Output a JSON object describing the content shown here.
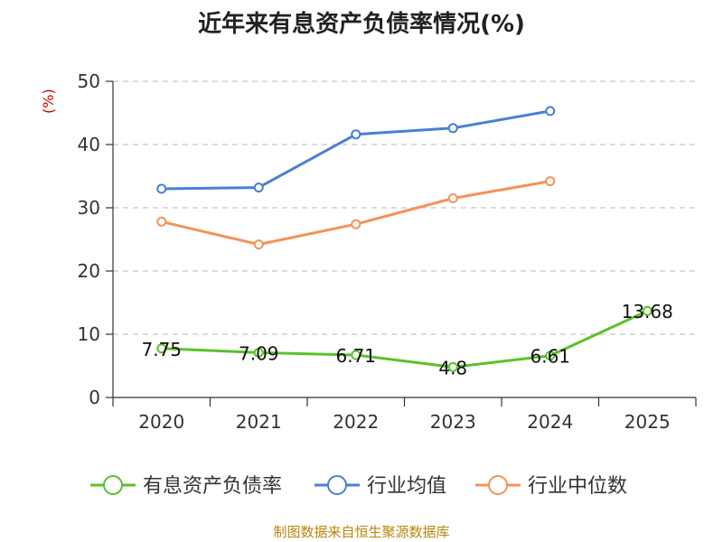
{
  "chart_data": {
    "type": "line",
    "title": "近年来有息资产负债率情况(%)",
    "ylabel": "(%)",
    "xlabel": "",
    "categories": [
      "2020",
      "2021",
      "2022",
      "2023",
      "2024",
      "2025"
    ],
    "ylim": [
      0,
      50
    ],
    "yticks": [
      0,
      10,
      20,
      30,
      40,
      50
    ],
    "grid": true,
    "legend_position": "bottom",
    "series": [
      {
        "name": "有息资产负债率",
        "color": "#5cc22a",
        "values": [
          7.75,
          7.09,
          6.71,
          4.8,
          6.61,
          13.68
        ],
        "labels": [
          "7.75",
          "7.09",
          "6.71",
          "4.8",
          "6.61",
          "13.68"
        ]
      },
      {
        "name": "行业均值",
        "color": "#4a7fd4",
        "values": [
          33.0,
          33.2,
          41.6,
          42.6,
          45.3,
          null
        ]
      },
      {
        "name": "行业中位数",
        "color": "#f5925a",
        "values": [
          27.8,
          24.2,
          27.4,
          31.5,
          34.2,
          null
        ]
      }
    ]
  },
  "source": "制图数据来自恒生聚源数据库"
}
